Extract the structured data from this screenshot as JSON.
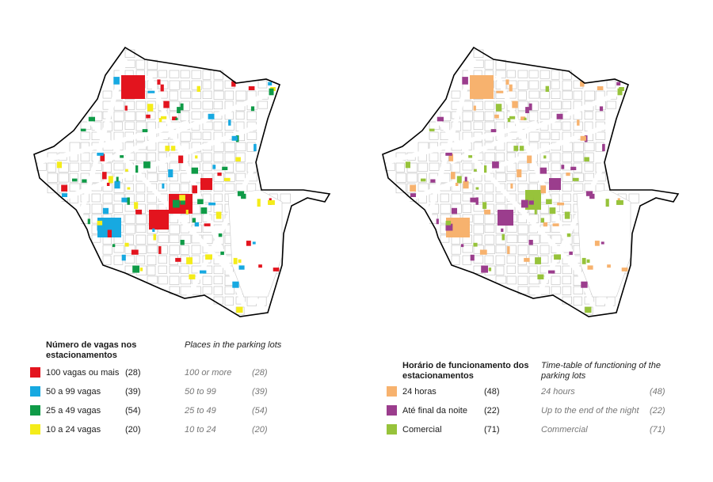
{
  "maps": [
    {
      "id": "left",
      "theme": "capacity"
    },
    {
      "id": "right",
      "theme": "schedule"
    }
  ],
  "legend_left": {
    "title": "Número de vagas nos estacionamentos",
    "title_line1": "Número de vagas nos",
    "title_line2": "estacionamentos",
    "subtitle": "Places in the parking lots",
    "items": [
      {
        "label": "100 vagas ou mais",
        "count": "(28)",
        "label_en": "100 or more",
        "count_en": "(28)",
        "color": "#e3141e"
      },
      {
        "label": "50 a 99 vagas",
        "count": "(39)",
        "label_en": "50 to 99",
        "count_en": "(39)",
        "color": "#17a9e1"
      },
      {
        "label": "25 a 49 vagas",
        "count": "(54)",
        "label_en": "25 to 49",
        "count_en": "(54)",
        "color": "#0f9b47"
      },
      {
        "label": "10 a 24 vagas",
        "count": "(20)",
        "label_en": "10 to 24",
        "count_en": "(20)",
        "color": "#f4ec1a"
      }
    ]
  },
  "legend_right": {
    "title_line1": "Horário de funcionamento dos",
    "title_line2": "estacionamentos",
    "subtitle_line1": "Time-table of functioning of the",
    "subtitle_line2": "parking lots",
    "items": [
      {
        "label": "24 horas",
        "count": "(48)",
        "label_en": "24 hours",
        "count_en": "(48)",
        "color": "#f7b26e"
      },
      {
        "label": "Até final da noite",
        "count": "(22)",
        "label_en": "Up to the end of the night",
        "count_en": "(22)",
        "color": "#9b3d8d"
      },
      {
        "label": "Comercial",
        "count": "(71)",
        "label_en": "Commercial",
        "count_en": "(71)",
        "color": "#97c33b"
      }
    ]
  }
}
